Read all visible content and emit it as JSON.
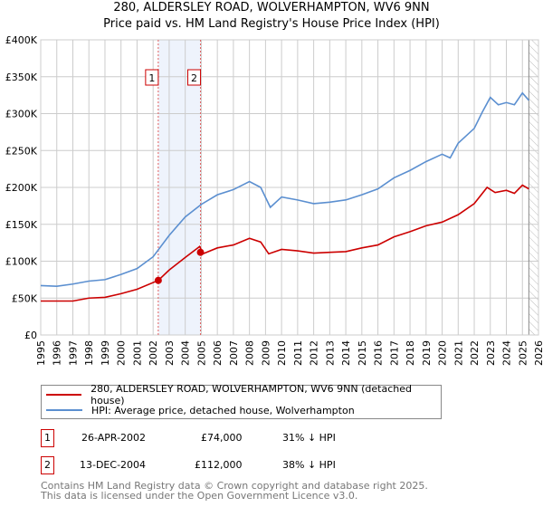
{
  "title": "280, ALDERSLEY ROAD, WOLVERHAMPTON, WV6 9NN",
  "subtitle": "Price paid vs. HM Land Registry's House Price Index (HPI)",
  "colors": {
    "property": "#cc0000",
    "hpi": "#5b8fd0",
    "shade": "#eef3fc"
  },
  "chart_data": {
    "type": "line",
    "title": "280, ALDERSLEY ROAD, WOLVERHAMPTON, WV6 9NN — Price paid vs. HM Land Registry's House Price Index (HPI)",
    "xlim": [
      1995,
      2026
    ],
    "ylim": [
      0,
      400000
    ],
    "x_ticks": [
      "1995",
      "1996",
      "1997",
      "1998",
      "1999",
      "2000",
      "2001",
      "2002",
      "2003",
      "2004",
      "2005",
      "2006",
      "2007",
      "2008",
      "2009",
      "2010",
      "2011",
      "2012",
      "2013",
      "2014",
      "2015",
      "2016",
      "2017",
      "2018",
      "2019",
      "2020",
      "2021",
      "2022",
      "2023",
      "2024",
      "2025",
      "2026"
    ],
    "y_ticks": [
      {
        "v": 0,
        "label": "£0"
      },
      {
        "v": 50000,
        "label": "£50K"
      },
      {
        "v": 100000,
        "label": "£100K"
      },
      {
        "v": 150000,
        "label": "£150K"
      },
      {
        "v": 200000,
        "label": "£200K"
      },
      {
        "v": 250000,
        "label": "£250K"
      },
      {
        "v": 300000,
        "label": "£300K"
      },
      {
        "v": 350000,
        "label": "£350K"
      },
      {
        "v": 400000,
        "label": "£400K"
      }
    ],
    "series": [
      {
        "name": "280, ALDERSLEY ROAD, WOLVERHAMPTON, WV6 9NN (detached house)",
        "color": "#cc0000",
        "x": [
          1995,
          1996,
          1997,
          1998,
          1999,
          2000,
          2001,
          2002.32,
          2003,
          2004,
          2004.9,
          2005.1,
          2006,
          2007,
          2008,
          2008.7,
          2009.2,
          2010,
          2011,
          2012,
          2013,
          2014,
          2015,
          2016,
          2017,
          2018,
          2019,
          2020,
          2021,
          2022,
          2022.8,
          2023.3,
          2024,
          2024.5,
          2025,
          2025.4
        ],
        "y": [
          46000,
          46000,
          46000,
          50000,
          51000,
          56000,
          62000,
          74000,
          88000,
          105000,
          120000,
          110000,
          118000,
          122000,
          131000,
          126000,
          110000,
          116000,
          114000,
          111000,
          112000,
          113000,
          118000,
          122000,
          133000,
          140000,
          148000,
          153000,
          163000,
          178000,
          200000,
          193000,
          196000,
          192000,
          203000,
          198000
        ]
      },
      {
        "name": "HPI: Average price, detached house, Wolverhampton",
        "color": "#5b8fd0",
        "x": [
          1995,
          1996,
          1997,
          1998,
          1999,
          2000,
          2001,
          2002,
          2003,
          2004,
          2005,
          2006,
          2007,
          2008,
          2008.7,
          2009.3,
          2010,
          2011,
          2012,
          2013,
          2014,
          2015,
          2016,
          2017,
          2018,
          2019,
          2020,
          2020.5,
          2021,
          2022,
          2022.5,
          2023,
          2023.5,
          2024,
          2024.5,
          2025,
          2025.4
        ],
        "y": [
          67000,
          66000,
          69000,
          73000,
          75000,
          82000,
          90000,
          106000,
          135000,
          160000,
          177000,
          190000,
          197000,
          208000,
          200000,
          173000,
          187000,
          183000,
          178000,
          180000,
          183000,
          190000,
          198000,
          213000,
          223000,
          235000,
          245000,
          240000,
          260000,
          280000,
          302000,
          322000,
          312000,
          315000,
          312000,
          328000,
          318000
        ]
      }
    ],
    "sales": [
      {
        "id": "1",
        "x": 2002.32,
        "y": 74000
      },
      {
        "id": "2",
        "x": 2004.95,
        "y": 112000
      }
    ],
    "forecast_start": 2025.4
  },
  "legend": [
    {
      "label": "280, ALDERSLEY ROAD, WOLVERHAMPTON, WV6 9NN (detached house)"
    },
    {
      "label": "HPI: Average price, detached house, Wolverhampton"
    }
  ],
  "transactions": [
    {
      "id": "1",
      "date": "26-APR-2002",
      "price": "£74,000",
      "hpi": "31% ↓ HPI"
    },
    {
      "id": "2",
      "date": "13-DEC-2004",
      "price": "£112,000",
      "hpi": "38% ↓ HPI"
    }
  ],
  "footer": [
    "Contains HM Land Registry data © Crown copyright and database right 2025.",
    "This data is licensed under the Open Government Licence v3.0."
  ]
}
